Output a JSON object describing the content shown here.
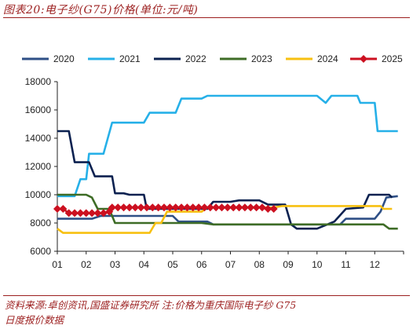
{
  "figure": {
    "title": "图表20:电子纱(G75)价格(单位:元/吨)",
    "source_line1": "资料来源:卓创资讯,国盛证券研究所    注:价格为重庆国际电子纱 G75",
    "source_line2": "日度报价数据"
  },
  "chart_data": {
    "type": "line",
    "ylim": [
      6000,
      18000
    ],
    "yticks": [
      "6000",
      "8000",
      "10000",
      "12000",
      "14000",
      "16000",
      "18000"
    ],
    "ytick_values": [
      6000,
      8000,
      10000,
      12000,
      14000,
      16000,
      18000
    ],
    "xlim": [
      1,
      13
    ],
    "xticks": [
      "01",
      "02",
      "03",
      "04",
      "05",
      "06",
      "07",
      "08",
      "09",
      "10",
      "11",
      "12"
    ],
    "grid": false,
    "legend_position": "top",
    "series": [
      {
        "name": "2020",
        "color": "#2e4f86",
        "marker": "none",
        "points": [
          [
            1,
            8300
          ],
          [
            2.2,
            8300
          ],
          [
            2.5,
            8500
          ],
          [
            5,
            8500
          ],
          [
            5.2,
            8100
          ],
          [
            6.2,
            8100
          ],
          [
            6.4,
            7900
          ],
          [
            8,
            7900
          ],
          [
            9,
            7900
          ],
          [
            10.8,
            7900
          ],
          [
            11,
            8300
          ],
          [
            12,
            8300
          ],
          [
            12.2,
            8800
          ],
          [
            12.4,
            9800
          ],
          [
            12.8,
            9900
          ]
        ]
      },
      {
        "name": "2021",
        "color": "#26b0e8",
        "marker": "none",
        "points": [
          [
            1,
            9900
          ],
          [
            1.6,
            9900
          ],
          [
            1.8,
            11100
          ],
          [
            2,
            11100
          ],
          [
            2.1,
            12900
          ],
          [
            2.6,
            12900
          ],
          [
            2.9,
            15100
          ],
          [
            4,
            15100
          ],
          [
            4.2,
            15800
          ],
          [
            5.1,
            15800
          ],
          [
            5.3,
            16800
          ],
          [
            6,
            16800
          ],
          [
            6.2,
            17000
          ],
          [
            10,
            17000
          ],
          [
            10.3,
            16500
          ],
          [
            10.5,
            17000
          ],
          [
            11.4,
            17000
          ],
          [
            11.5,
            16500
          ],
          [
            12,
            16500
          ],
          [
            12.1,
            14500
          ],
          [
            12.8,
            14500
          ]
        ]
      },
      {
        "name": "2022",
        "color": "#0b2150",
        "marker": "none",
        "points": [
          [
            1,
            14500
          ],
          [
            1.4,
            14500
          ],
          [
            1.6,
            12300
          ],
          [
            2.1,
            12300
          ],
          [
            2.3,
            11300
          ],
          [
            2.9,
            11300
          ],
          [
            3,
            10100
          ],
          [
            3.3,
            10100
          ],
          [
            3.5,
            10000
          ],
          [
            4,
            10000
          ],
          [
            4.1,
            9000
          ],
          [
            6.2,
            9000
          ],
          [
            6.4,
            9500
          ],
          [
            7,
            9500
          ],
          [
            7.3,
            9600
          ],
          [
            8,
            9600
          ],
          [
            8.3,
            9300
          ],
          [
            8.9,
            9300
          ],
          [
            9.1,
            7900
          ],
          [
            9.3,
            7600
          ],
          [
            10,
            7600
          ],
          [
            10.6,
            8100
          ],
          [
            11,
            9000
          ],
          [
            11.6,
            9100
          ],
          [
            11.8,
            10000
          ],
          [
            12.5,
            10000
          ],
          [
            12.6,
            9800
          ]
        ]
      },
      {
        "name": "2023",
        "color": "#3e6c26",
        "marker": "none",
        "points": [
          [
            1,
            10000
          ],
          [
            2,
            10000
          ],
          [
            2.2,
            9800
          ],
          [
            2.4,
            9000
          ],
          [
            2.8,
            9000
          ],
          [
            3,
            8000
          ],
          [
            6,
            8000
          ],
          [
            6.4,
            7900
          ],
          [
            7,
            7900
          ],
          [
            12.3,
            7900
          ],
          [
            12.5,
            7600
          ],
          [
            12.8,
            7600
          ]
        ]
      },
      {
        "name": "2024",
        "color": "#f7c011",
        "marker": "none",
        "points": [
          [
            1,
            7600
          ],
          [
            1.2,
            7300
          ],
          [
            4.2,
            7300
          ],
          [
            4.4,
            8000
          ],
          [
            4.6,
            8000
          ],
          [
            4.8,
            8800
          ],
          [
            6,
            8800
          ],
          [
            6.2,
            9100
          ],
          [
            8.5,
            9100
          ],
          [
            8.8,
            9200
          ],
          [
            12.2,
            9200
          ],
          [
            12.3,
            9000
          ],
          [
            12.6,
            9000
          ]
        ]
      },
      {
        "name": "2025",
        "color": "#cc1020",
        "marker": "diamond",
        "points": [
          [
            1,
            9000
          ],
          [
            1.2,
            9000
          ],
          [
            1.4,
            8700
          ],
          [
            1.6,
            8700
          ],
          [
            1.8,
            8700
          ],
          [
            2,
            8700
          ],
          [
            2.2,
            8700
          ],
          [
            2.4,
            8700
          ],
          [
            2.6,
            8700
          ],
          [
            2.8,
            8800
          ],
          [
            2.9,
            9100
          ],
          [
            3.1,
            9100
          ],
          [
            3.3,
            9100
          ],
          [
            3.5,
            9100
          ],
          [
            3.7,
            9100
          ],
          [
            3.9,
            9100
          ],
          [
            4.1,
            9100
          ],
          [
            4.3,
            9100
          ],
          [
            4.5,
            9100
          ],
          [
            4.7,
            9100
          ],
          [
            4.9,
            9100
          ],
          [
            5.1,
            9100
          ],
          [
            5.3,
            9100
          ],
          [
            5.5,
            9100
          ],
          [
            5.7,
            9100
          ],
          [
            5.9,
            9100
          ],
          [
            6.1,
            9100
          ],
          [
            6.3,
            9100
          ],
          [
            6.5,
            9100
          ],
          [
            6.7,
            9100
          ],
          [
            6.9,
            9100
          ],
          [
            7.1,
            9100
          ],
          [
            7.3,
            9100
          ],
          [
            7.5,
            9100
          ],
          [
            7.7,
            9100
          ],
          [
            7.9,
            9100
          ],
          [
            8.1,
            9100
          ],
          [
            8.3,
            9000
          ],
          [
            8.5,
            9000
          ]
        ]
      }
    ]
  }
}
